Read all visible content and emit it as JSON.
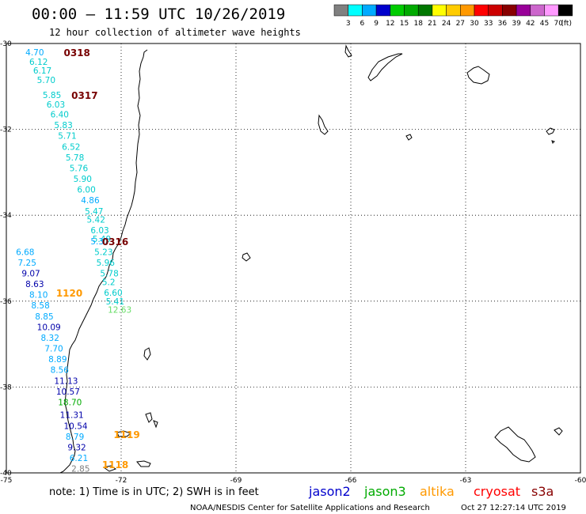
{
  "header": {
    "title": "00:00 – 11:59 UTC 10/26/2019",
    "subtitle": "12 hour collection of altimeter wave heights"
  },
  "color_scale": {
    "labels": [
      "3",
      "6",
      "9",
      "12",
      "15",
      "18",
      "21",
      "24",
      "27",
      "30",
      "33",
      "36",
      "39",
      "42",
      "45",
      "70"
    ],
    "unit": "(ft)",
    "colors": [
      "#808080",
      "#00ffff",
      "#00aaff",
      "#0000cc",
      "#00cc00",
      "#00aa00",
      "#007700",
      "#ffff00",
      "#ffcc00",
      "#ff9900",
      "#ff0000",
      "#cc0000",
      "#880000",
      "#990099",
      "#cc66cc",
      "#ff99ff",
      "#000000"
    ]
  },
  "axes": {
    "lat_labels": [
      "-30",
      "-32",
      "-34",
      "-36",
      "-38",
      "-40"
    ],
    "lon_labels": [
      "-75",
      "-72",
      "-69",
      "-66",
      "-63",
      "-60"
    ]
  },
  "chart_data": {
    "type": "map",
    "lon_range": [
      -75,
      -60
    ],
    "lat_range": [
      -40,
      -30
    ],
    "grid": true,
    "time_labels": [
      {
        "text": "0318",
        "lat": -30.2,
        "lon": -73.5,
        "color": "#770000"
      },
      {
        "text": "0317",
        "lat": -31.2,
        "lon": -73.3,
        "color": "#770000"
      },
      {
        "text": "0316",
        "lat": -34.6,
        "lon": -72.5,
        "color": "#770000"
      },
      {
        "text": "1120",
        "lat": -35.8,
        "lon": -73.7,
        "color": "#ff9900"
      },
      {
        "text": "1119",
        "lat": -39.1,
        "lon": -72.2,
        "color": "#ff9900"
      },
      {
        "text": "1118",
        "lat": -39.8,
        "lon": -72.5,
        "color": "#ff9900"
      }
    ],
    "series": [
      {
        "name": "jason2",
        "color": "#0000cc",
        "points": []
      },
      {
        "name": "jason3",
        "color": "#00aa00",
        "points": []
      },
      {
        "name": "altika",
        "color": "#ff9900",
        "points": []
      },
      {
        "name": "cryosat",
        "color": "#ff0000",
        "points": []
      },
      {
        "name": "s3a",
        "color": "#880000",
        "points": []
      }
    ],
    "wave_heights": [
      {
        "v": "4.70",
        "lat": -30.2,
        "lon": -74.5,
        "c": "#00aaff"
      },
      {
        "v": "6.12",
        "lat": -30.42,
        "lon": -74.4,
        "c": "#00cccc"
      },
      {
        "v": "6.17",
        "lat": -30.63,
        "lon": -74.3,
        "c": "#00cccc"
      },
      {
        "v": "5.70",
        "lat": -30.85,
        "lon": -74.2,
        "c": "#00cccc"
      },
      {
        "v": "5.85",
        "lat": -31.2,
        "lon": -74.05,
        "c": "#00cccc"
      },
      {
        "v": "6.03",
        "lat": -31.42,
        "lon": -73.95,
        "c": "#00cccc"
      },
      {
        "v": "6.40",
        "lat": -31.65,
        "lon": -73.85,
        "c": "#00cccc"
      },
      {
        "v": "5.83",
        "lat": -31.9,
        "lon": -73.75,
        "c": "#00cccc"
      },
      {
        "v": "5.71",
        "lat": -32.15,
        "lon": -73.65,
        "c": "#00cccc"
      },
      {
        "v": "6.52",
        "lat": -32.4,
        "lon": -73.55,
        "c": "#00cccc"
      },
      {
        "v": "5.78",
        "lat": -32.65,
        "lon": -73.45,
        "c": "#00cccc"
      },
      {
        "v": "5.76",
        "lat": -32.9,
        "lon": -73.35,
        "c": "#00cccc"
      },
      {
        "v": "5.90",
        "lat": -33.15,
        "lon": -73.25,
        "c": "#00cccc"
      },
      {
        "v": "6.00",
        "lat": -33.4,
        "lon": -73.15,
        "c": "#00cccc"
      },
      {
        "v": "4.86",
        "lat": -33.65,
        "lon": -73.05,
        "c": "#00aaff"
      },
      {
        "v": "5.47",
        "lat": -33.9,
        "lon": -72.95,
        "c": "#00cccc"
      },
      {
        "v": "5.42",
        "lat": -34.1,
        "lon": -72.9,
        "c": "#00cccc"
      },
      {
        "v": "6.03",
        "lat": -34.35,
        "lon": -72.8,
        "c": "#00cccc"
      },
      {
        "v": "5.49",
        "lat": -34.55,
        "lon": -72.75,
        "c": "#00cccc"
      },
      {
        "v": "5.37",
        "lat": -34.6,
        "lon": -72.8,
        "c": "#00aaff"
      },
      {
        "v": "5.23",
        "lat": -34.85,
        "lon": -72.7,
        "c": "#00cccc"
      },
      {
        "v": "5.96",
        "lat": -35.1,
        "lon": -72.65,
        "c": "#00cccc"
      },
      {
        "v": "5.78",
        "lat": -35.35,
        "lon": -72.55,
        "c": "#00cccc"
      },
      {
        "v": "5.2",
        "lat": -35.55,
        "lon": -72.5,
        "c": "#00cccc"
      },
      {
        "v": "6.60",
        "lat": -35.8,
        "lon": -72.45,
        "c": "#00cccc"
      },
      {
        "v": "5.41",
        "lat": -36.0,
        "lon": -72.4,
        "c": "#00cccc"
      },
      {
        "v": "12.63",
        "lat": -36.2,
        "lon": -72.35,
        "c": "#66dd66"
      },
      {
        "v": "6.68",
        "lat": -34.85,
        "lon": -74.75,
        "c": "#00aaff"
      },
      {
        "v": "7.25",
        "lat": -35.1,
        "lon": -74.7,
        "c": "#00aaff"
      },
      {
        "v": "9.07",
        "lat": -35.35,
        "lon": -74.6,
        "c": "#0000aa"
      },
      {
        "v": "8.63",
        "lat": -35.6,
        "lon": -74.5,
        "c": "#0000aa"
      },
      {
        "v": "8.10",
        "lat": -35.85,
        "lon": -74.4,
        "c": "#00aaff"
      },
      {
        "v": "8.58",
        "lat": -36.1,
        "lon": -74.35,
        "c": "#00aaff"
      },
      {
        "v": "8.85",
        "lat": -36.35,
        "lon": -74.25,
        "c": "#00aaff"
      },
      {
        "v": "10.09",
        "lat": -36.6,
        "lon": -74.2,
        "c": "#0000aa"
      },
      {
        "v": "8.32",
        "lat": -36.85,
        "lon": -74.1,
        "c": "#00aaff"
      },
      {
        "v": "7.70",
        "lat": -37.1,
        "lon": -74.0,
        "c": "#00aaff"
      },
      {
        "v": "8.89",
        "lat": -37.35,
        "lon": -73.9,
        "c": "#00aaff"
      },
      {
        "v": "8.56",
        "lat": -37.6,
        "lon": -73.85,
        "c": "#00aaff"
      },
      {
        "v": "11.13",
        "lat": -37.85,
        "lon": -73.75,
        "c": "#0000aa"
      },
      {
        "v": "10.57",
        "lat": -38.1,
        "lon": -73.7,
        "c": "#0000aa"
      },
      {
        "v": "18.70",
        "lat": -38.35,
        "lon": -73.65,
        "c": "#00aa00"
      },
      {
        "v": "11.31",
        "lat": -38.65,
        "lon": -73.6,
        "c": "#0000aa"
      },
      {
        "v": "10.54",
        "lat": -38.9,
        "lon": -73.5,
        "c": "#0000aa"
      },
      {
        "v": "8.79",
        "lat": -39.15,
        "lon": -73.45,
        "c": "#00aaff"
      },
      {
        "v": "9.32",
        "lat": -39.4,
        "lon": -73.4,
        "c": "#0000aa"
      },
      {
        "v": "6.21",
        "lat": -39.65,
        "lon": -73.35,
        "c": "#00aaff"
      },
      {
        "v": "2.85",
        "lat": -39.9,
        "lon": -73.3,
        "c": "#808080"
      }
    ]
  },
  "footer": {
    "note": "note: 1) Time is in UTC; 2) SWH is in feet",
    "credit": "NOAA/NESDIS Center for Satellite Applications and Research",
    "timestamp": "Oct 27 12:27:14 UTC 2019"
  }
}
